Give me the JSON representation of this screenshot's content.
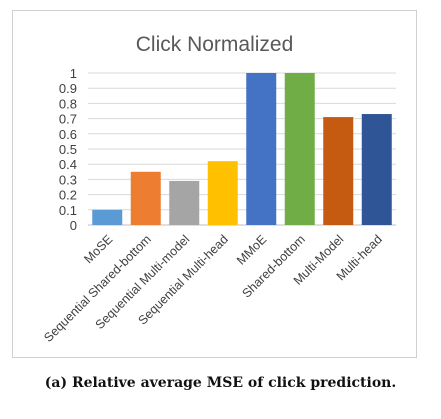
{
  "chart_data": {
    "type": "bar",
    "title": "Click Normalized",
    "categories": [
      "MoSE",
      "Sequential Shared-bottom",
      "Sequential Multi-model",
      "Sequential Multi-head",
      "MMoE",
      "Shared-bottom",
      "Multi-Model",
      "Multi-head"
    ],
    "values": [
      0.1,
      0.35,
      0.29,
      0.42,
      1.0,
      1.0,
      0.71,
      0.73
    ],
    "colors": [
      "#5B9BD5",
      "#ED7D31",
      "#A5A5A5",
      "#FFC000",
      "#4472C4",
      "#70AD47",
      "#C55A11",
      "#2F5597"
    ],
    "ylim": [
      0,
      1
    ],
    "yticks": [
      "0",
      "0.1",
      "0.2",
      "0.3",
      "0.4",
      "0.5",
      "0.6",
      "0.7",
      "0.8",
      "0.9",
      "1"
    ],
    "grid": true,
    "xlabel": "",
    "ylabel": ""
  },
  "caption": "(a) Relative average MSE of click prediction."
}
